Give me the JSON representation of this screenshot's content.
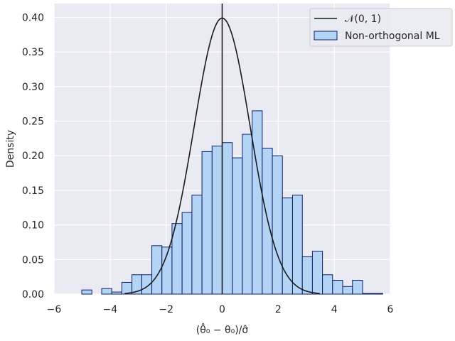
{
  "chart_data": {
    "type": "bar",
    "xlabel": "(θ̂₀ − θ₀)/σ̂",
    "ylabel": "Density",
    "xlim": [
      -6,
      6
    ],
    "ylim": [
      0,
      0.42
    ],
    "x_ticks": [
      "−6",
      "−4",
      "−2",
      "0",
      "2",
      "4",
      "6"
    ],
    "x_tick_values": [
      -6,
      -4,
      -2,
      0,
      2,
      4,
      6
    ],
    "y_ticks": [
      "0.00",
      "0.05",
      "0.10",
      "0.15",
      "0.20",
      "0.25",
      "0.30",
      "0.35",
      "0.40"
    ],
    "y_tick_values": [
      0,
      0.05,
      0.1,
      0.15,
      0.2,
      0.25,
      0.3,
      0.35,
      0.4
    ],
    "grid": true,
    "vertical_line_x": 0,
    "legend_position": "top-right",
    "legend": {
      "line_label": "𝒩(0, 1)",
      "hist_label": "Non-orthogonal ML"
    },
    "histogram": {
      "name": "Non-orthogonal ML",
      "bin_edges": [
        -5.01,
        -4.65,
        -4.3,
        -3.94,
        -3.58,
        -3.22,
        -2.87,
        -2.51,
        -2.15,
        -1.79,
        -1.43,
        -1.08,
        -0.72,
        -0.36,
        0.0,
        0.36,
        0.72,
        1.07,
        1.43,
        1.79,
        2.15,
        2.51,
        2.86,
        3.22,
        3.58,
        3.94,
        4.3,
        4.65,
        5.01,
        5.37,
        5.73
      ],
      "densities": [
        0.006,
        0.0,
        0.008,
        0.003,
        0.017,
        0.028,
        0.028,
        0.07,
        0.068,
        0.102,
        0.118,
        0.143,
        0.206,
        0.214,
        0.219,
        0.197,
        0.231,
        0.265,
        0.211,
        0.2,
        0.139,
        0.143,
        0.054,
        0.062,
        0.028,
        0.02,
        0.011,
        0.02,
        0.001,
        0.001
      ],
      "fill": "#b3d4f5",
      "edge": "#0b1f66"
    },
    "curve": {
      "name": "𝒩(0, 1)",
      "mean": 0,
      "sd": 1,
      "color": "#1a1a1a"
    },
    "colors": {
      "plot_background": "#eaeaf2",
      "grid": "#ffffff",
      "legend_background": "#eaeaf2",
      "legend_border": "#cccccc"
    }
  }
}
